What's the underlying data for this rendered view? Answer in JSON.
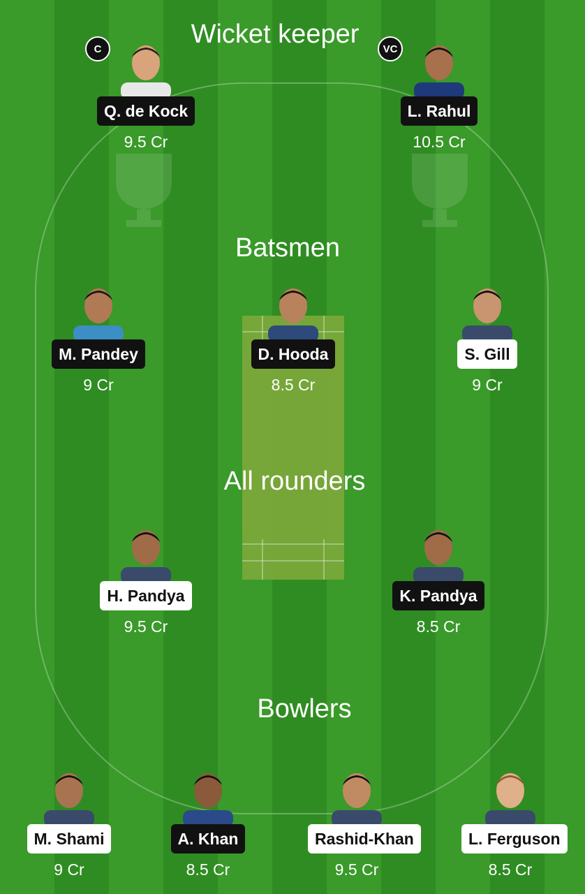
{
  "sections": {
    "wicket_keeper": "Wicket keeper",
    "batsmen": "Batsmen",
    "all_rounders": "All rounders",
    "bowlers": "Bowlers"
  },
  "badges": {
    "captain": "C",
    "vice_captain": "VC"
  },
  "colors": {
    "field_green": "#3a9a2a",
    "pitch": "#7aa83a",
    "dark_tag": "#111111",
    "light_tag": "#ffffff"
  },
  "players": {
    "wk1": {
      "name": "Q. de Kock",
      "price": "9.5 Cr",
      "tag": "dark"
    },
    "wk2": {
      "name": "L. Rahul",
      "price": "10.5 Cr",
      "tag": "dark"
    },
    "bat1": {
      "name": "M. Pandey",
      "price": "9 Cr",
      "tag": "dark"
    },
    "bat2": {
      "name": "D. Hooda",
      "price": "8.5 Cr",
      "tag": "dark"
    },
    "bat3": {
      "name": "S. Gill",
      "price": "9 Cr",
      "tag": "light"
    },
    "ar1": {
      "name": "H. Pandya",
      "price": "9.5 Cr",
      "tag": "light"
    },
    "ar2": {
      "name": "K. Pandya",
      "price": "8.5 Cr",
      "tag": "dark"
    },
    "bowl1": {
      "name": "M. Shami",
      "price": "9 Cr",
      "tag": "light"
    },
    "bowl2": {
      "name": "A. Khan",
      "price": "8.5 Cr",
      "tag": "dark"
    },
    "bowl3": {
      "name": "Rashid-Khan",
      "price": "9.5 Cr",
      "tag": "light"
    },
    "bowl4": {
      "name": "L. Ferguson",
      "price": "8.5 Cr",
      "tag": "light"
    }
  }
}
